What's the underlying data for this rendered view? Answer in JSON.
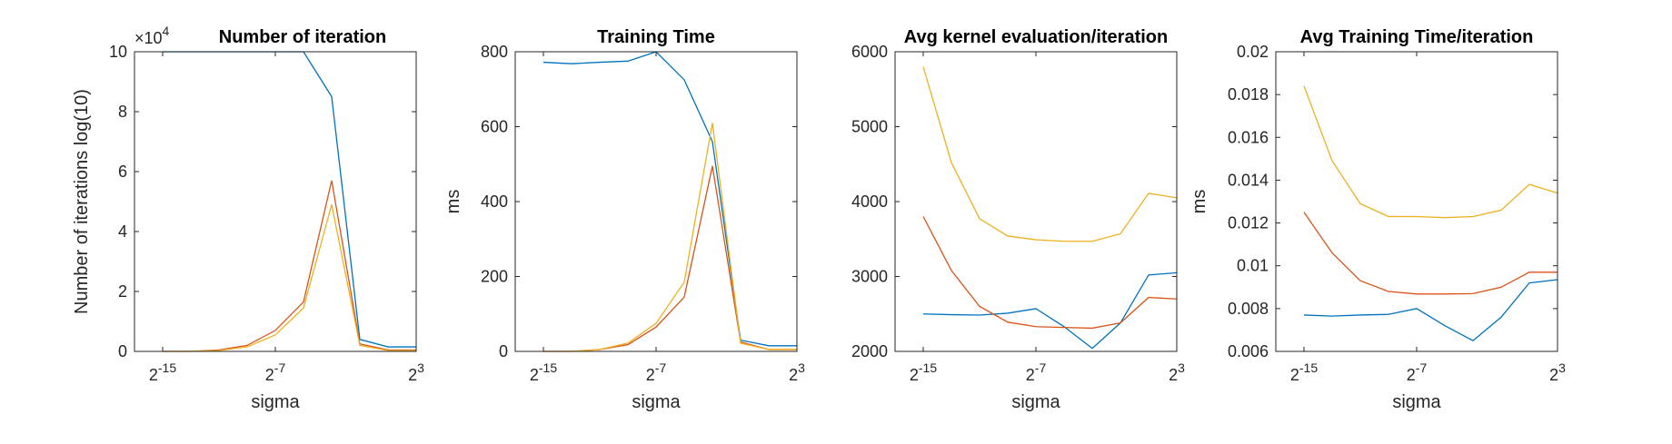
{
  "chart_data": [
    {
      "type": "line",
      "title": "Number of iteration",
      "xlabel": "sigma",
      "ylabel": "Number of iterations log(10)",
      "exponent_label": "×10",
      "exponent": "4",
      "x": [
        -15,
        -13,
        -11,
        -9,
        -7,
        -5,
        -3,
        -1,
        1,
        3
      ],
      "xlim": [
        -17,
        3
      ],
      "xticks": [
        -15,
        -7,
        3
      ],
      "xtick_labels": [
        {
          "base": "2",
          "exp": "-15"
        },
        {
          "base": "2",
          "exp": "-7"
        },
        {
          "base": "2",
          "exp": "3"
        }
      ],
      "ylim": [
        0,
        10
      ],
      "yticks": [
        0,
        2,
        4,
        6,
        8,
        10
      ],
      "series": [
        {
          "color": "#0072BD",
          "values": [
            10,
            10,
            10,
            10,
            10,
            10,
            8.5,
            0.4,
            0.15,
            0.15
          ]
        },
        {
          "color": "#D95319",
          "values": [
            0,
            0,
            0.05,
            0.2,
            0.7,
            1.65,
            5.7,
            0.25,
            0.05,
            0.05
          ]
        },
        {
          "color": "#EDB120",
          "values": [
            0,
            0,
            0.03,
            0.15,
            0.55,
            1.45,
            4.9,
            0.2,
            0.03,
            0.03
          ]
        }
      ]
    },
    {
      "type": "line",
      "title": "Training Time",
      "xlabel": "sigma",
      "ylabel": "ms",
      "x": [
        -15,
        -13,
        -11,
        -9,
        -7,
        -5,
        -3,
        -1,
        1,
        3
      ],
      "xlim": [
        -17,
        3
      ],
      "xticks": [
        -15,
        -7,
        3
      ],
      "xtick_labels": [
        {
          "base": "2",
          "exp": "-15"
        },
        {
          "base": "2",
          "exp": "-7"
        },
        {
          "base": "2",
          "exp": "3"
        }
      ],
      "ylim": [
        0,
        800
      ],
      "yticks": [
        0,
        200,
        400,
        600,
        800
      ],
      "series": [
        {
          "color": "#0072BD",
          "values": [
            772,
            768,
            772,
            775,
            800,
            725,
            560,
            30,
            15,
            15
          ]
        },
        {
          "color": "#D95319",
          "values": [
            0,
            0,
            5,
            18,
            65,
            145,
            495,
            25,
            5,
            5
          ]
        },
        {
          "color": "#EDB120",
          "values": [
            0,
            0,
            5,
            22,
            75,
            185,
            610,
            22,
            5,
            5
          ]
        }
      ]
    },
    {
      "type": "line",
      "title": "Avg kernel evaluation/iteration",
      "xlabel": "sigma",
      "ylabel": "",
      "x": [
        -15,
        -13,
        -11,
        -9,
        -7,
        -5,
        -3,
        -1,
        1,
        3
      ],
      "xlim": [
        -17,
        3
      ],
      "xticks": [
        -15,
        -7,
        3
      ],
      "xtick_labels": [
        {
          "base": "2",
          "exp": "-15"
        },
        {
          "base": "2",
          "exp": "-7"
        },
        {
          "base": "2",
          "exp": "3"
        }
      ],
      "ylim": [
        2000,
        6000
      ],
      "yticks": [
        2000,
        3000,
        4000,
        5000,
        6000
      ],
      "series": [
        {
          "color": "#0072BD",
          "values": [
            2500,
            2490,
            2485,
            2510,
            2570,
            2330,
            2040,
            2380,
            3020,
            3050
          ]
        },
        {
          "color": "#D95319",
          "values": [
            3800,
            3080,
            2600,
            2390,
            2330,
            2320,
            2310,
            2380,
            2720,
            2700
          ]
        },
        {
          "color": "#EDB120",
          "values": [
            5800,
            4520,
            3770,
            3540,
            3490,
            3470,
            3470,
            3570,
            4110,
            4050
          ]
        }
      ]
    },
    {
      "type": "line",
      "title": "Avg Training Time/iteration",
      "xlabel": "sigma",
      "ylabel": "ms",
      "x": [
        -15,
        -13,
        -11,
        -9,
        -7,
        -5,
        -3,
        -1,
        1,
        3
      ],
      "xlim": [
        -17,
        3
      ],
      "xticks": [
        -15,
        -7,
        3
      ],
      "xtick_labels": [
        {
          "base": "2",
          "exp": "-15"
        },
        {
          "base": "2",
          "exp": "-7"
        },
        {
          "base": "2",
          "exp": "3"
        }
      ],
      "ylim": [
        0.006,
        0.02
      ],
      "yticks": [
        0.006,
        0.008,
        0.01,
        0.012,
        0.014,
        0.016,
        0.018,
        0.02
      ],
      "series": [
        {
          "color": "#0072BD",
          "values": [
            0.0077,
            0.00765,
            0.0077,
            0.00773,
            0.008,
            0.0072,
            0.0065,
            0.0076,
            0.0092,
            0.00935
          ]
        },
        {
          "color": "#D95319",
          "values": [
            0.0125,
            0.0106,
            0.0093,
            0.0088,
            0.00868,
            0.00868,
            0.0087,
            0.009,
            0.0097,
            0.0097
          ]
        },
        {
          "color": "#EDB120",
          "values": [
            0.0184,
            0.0149,
            0.0129,
            0.0123,
            0.0123,
            0.01225,
            0.0123,
            0.0126,
            0.0138,
            0.0134
          ]
        }
      ]
    }
  ]
}
